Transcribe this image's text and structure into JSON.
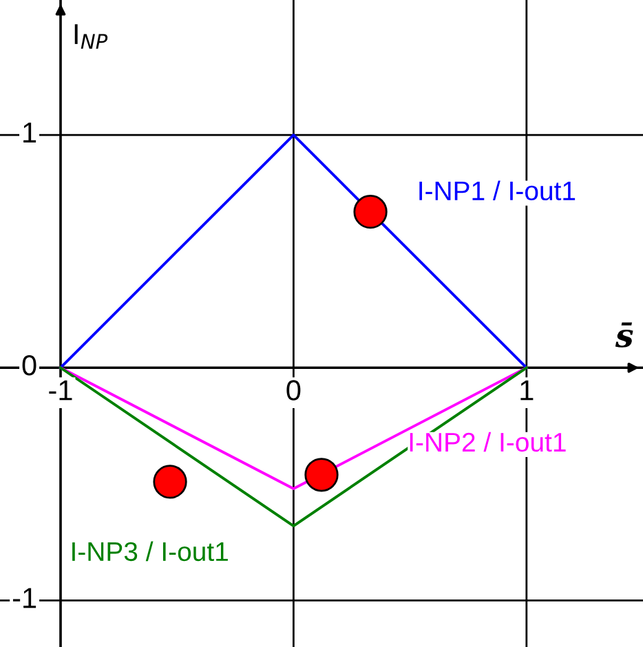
{
  "chart_data": {
    "type": "line",
    "xlabel": "s̄",
    "ylabel": "I$_{NP}$",
    "x": [
      -1,
      0,
      1
    ],
    "series": [
      {
        "name": "I-NP1 / I-out1",
        "color": "#0000ff",
        "values": [
          0,
          1,
          0
        ]
      },
      {
        "name": "I-NP2 / I-out1",
        "color": "#ff00ff",
        "values": [
          0,
          -0.52,
          0
        ]
      },
      {
        "name": "I-NP3 / I-out1",
        "color": "#008000",
        "values": [
          0,
          -0.68,
          0
        ]
      },
      {
        "type": "scatter",
        "marker": "circle",
        "color": "#ff0000",
        "x": [
          0.33,
          -0.53,
          0.12
        ],
        "values": [
          0.67,
          -0.49,
          -0.46
        ]
      }
    ],
    "xlim": [
      -1.26,
      1.5
    ],
    "ylim": [
      -1.2,
      1.58
    ],
    "xticks": [
      -1,
      0,
      1
    ],
    "yticks": [
      -1,
      0,
      1
    ],
    "ref_lines": [
      {
        "axis": "x",
        "value": -1,
        "color": "#000000"
      }
    ],
    "grid": true,
    "marker": "none"
  }
}
